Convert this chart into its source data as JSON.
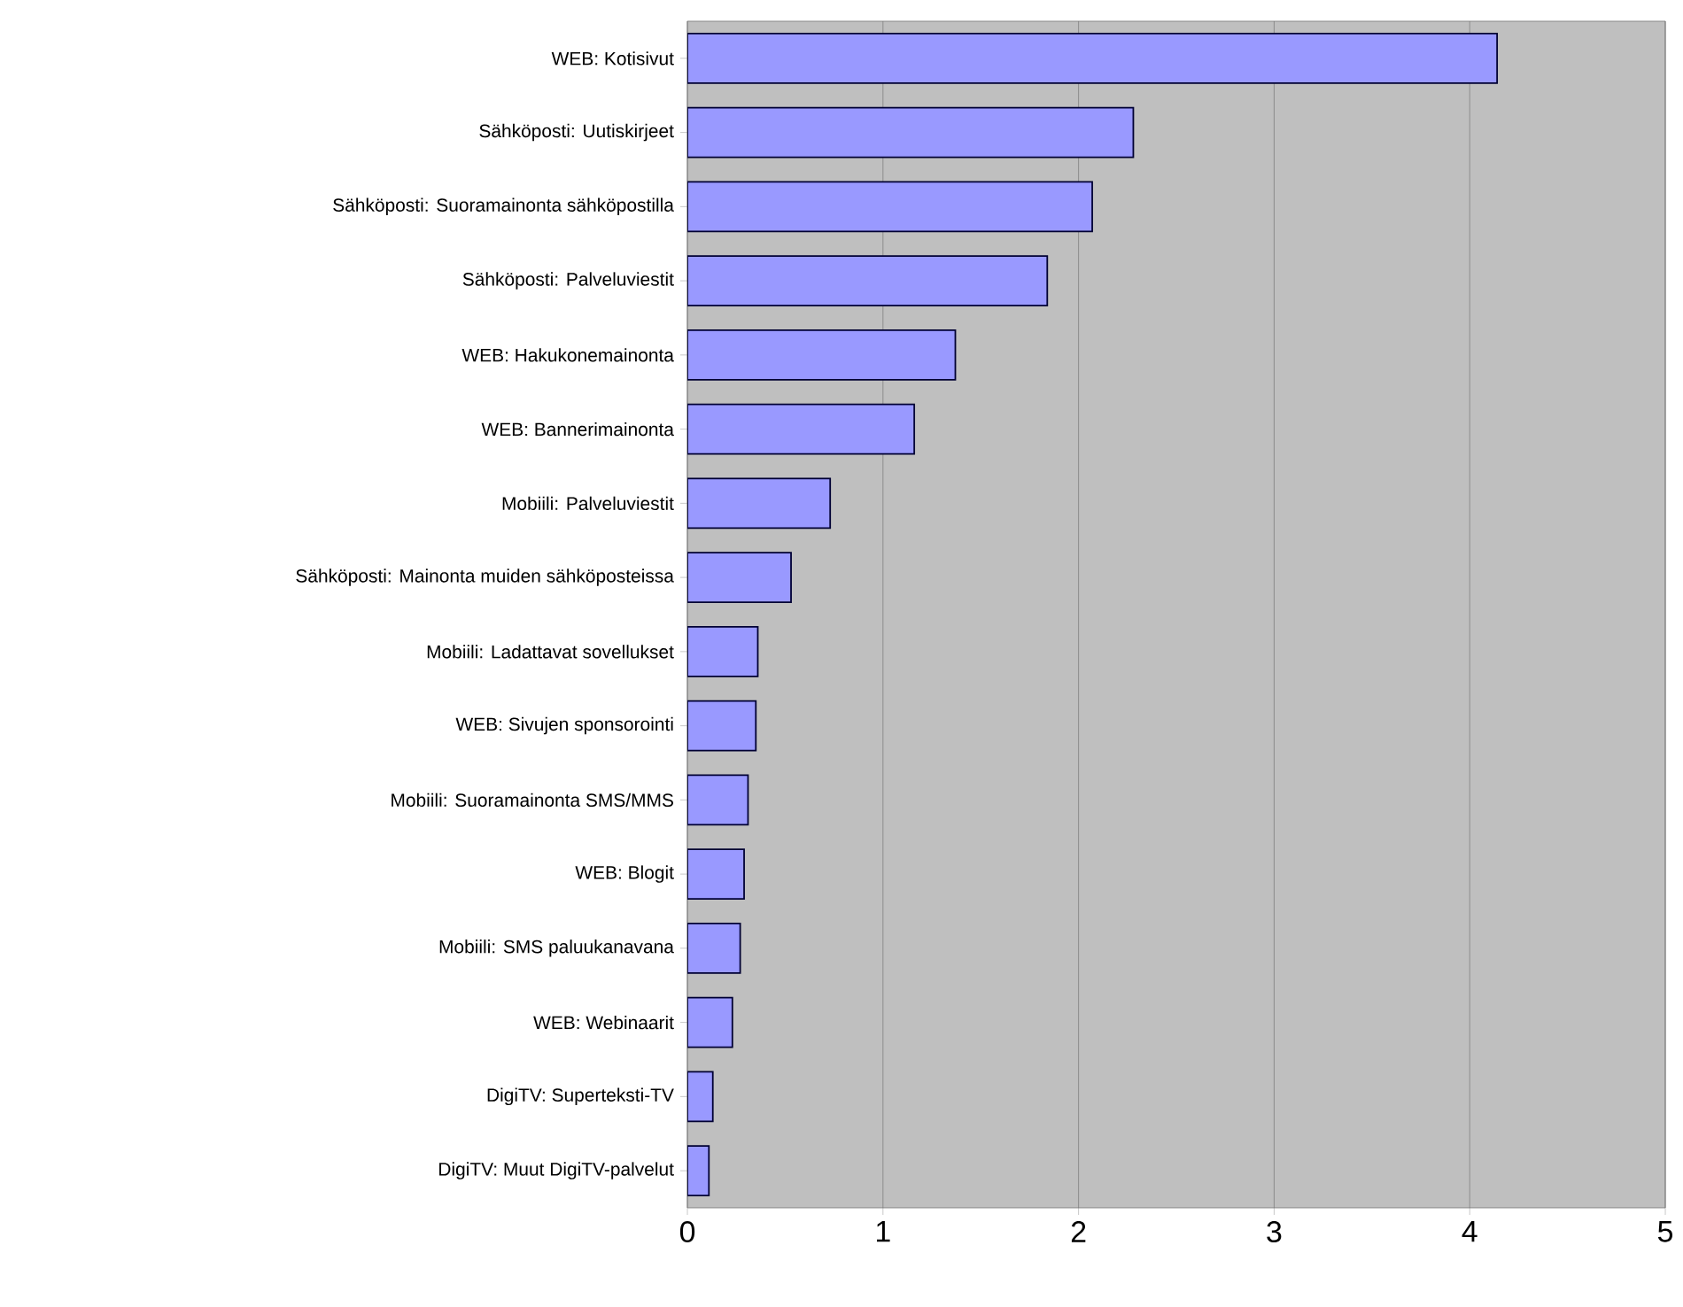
{
  "chart_data": {
    "type": "bar",
    "orientation": "horizontal",
    "categories": [
      "WEB: Kotisivut",
      "Sähköposti: Uutiskirjeet",
      "Sähköposti: Suoramainonta sähköpostilla",
      "Sähköposti: Palveluviestit",
      "WEB: Hakukonemainonta",
      "WEB: Bannerimainonta",
      "Mobiili: Palveluviestit",
      "Sähköposti: Mainonta muiden sähköposteissa",
      "Mobiili: Ladattavat sovellukset",
      "WEB: Sivujen sponsorointi",
      "Mobiili: Suoramainonta SMS/MMS",
      "WEB: Blogit",
      "Mobiili: SMS paluukanavana",
      "WEB: Webinaarit",
      "DigiTV: Superteksti-TV",
      "DigiTV: Muut DigiTV-palvelut"
    ],
    "values": [
      4.14,
      2.28,
      2.07,
      1.84,
      1.37,
      1.16,
      0.73,
      0.53,
      0.36,
      0.35,
      0.31,
      0.29,
      0.27,
      0.23,
      0.13,
      0.11
    ],
    "color": "#9999ff",
    "xlim": [
      0,
      5
    ],
    "xticks": [
      0,
      1,
      2,
      3,
      4,
      5
    ],
    "grid": "x"
  }
}
